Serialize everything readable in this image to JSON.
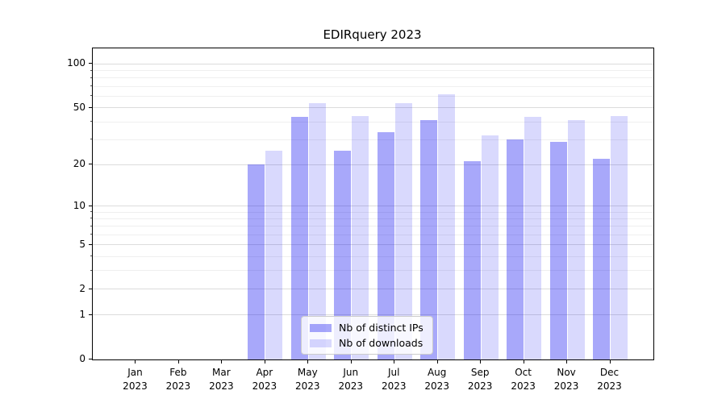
{
  "title": "EDIRquery 2023",
  "chart_data": {
    "type": "bar",
    "title": "EDIRquery 2023",
    "categories": [
      "Jan 2023",
      "Feb 2023",
      "Mar 2023",
      "Apr 2023",
      "May 2023",
      "Jun 2023",
      "Jul 2023",
      "Aug 2023",
      "Sep 2023",
      "Oct 2023",
      "Nov 2023",
      "Dec 2023"
    ],
    "series": [
      {
        "name": "Nb of distinct IPs",
        "base_color": "#0000f0",
        "alpha": 0.34,
        "values": [
          0,
          0,
          0,
          20,
          43,
          25,
          34,
          41,
          21,
          30,
          29,
          22
        ]
      },
      {
        "name": "Nb of downloads",
        "base_color": "#0000f0",
        "alpha": 0.15,
        "values": [
          0,
          0,
          0,
          25,
          54,
          44,
          54,
          62,
          32,
          43,
          41,
          44
        ]
      }
    ],
    "xlabel": "",
    "ylabel": "",
    "yscale": "log1p",
    "ylim": [
      0,
      128
    ],
    "yticks": [
      0,
      1,
      2,
      5,
      10,
      20,
      50,
      100
    ],
    "yticks_minor": [
      3,
      4,
      6,
      7,
      8,
      9,
      30,
      40,
      60,
      70,
      80,
      90
    ],
    "grid": "horizontal",
    "legend_position": "lower-center-inside"
  },
  "colors": {
    "grid_major": "#dcdcdc",
    "grid_minor": "#efefef",
    "spine": "#000000",
    "legend_border": "#cccccc",
    "bar_ips_rendered": "#a8a8f8",
    "bar_downloads_rendered": "#d9d9f8"
  }
}
